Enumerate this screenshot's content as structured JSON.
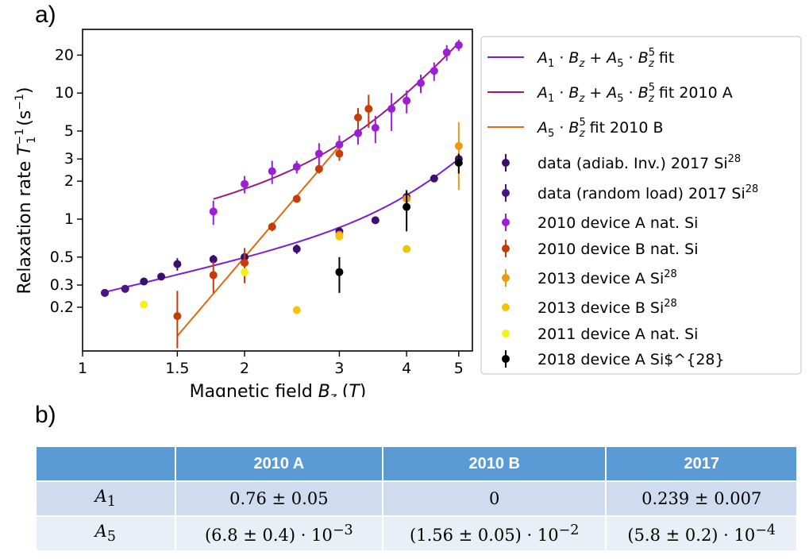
{
  "panel_labels": {
    "a": "a)",
    "b": "b)"
  },
  "chart_data": {
    "type": "scatter",
    "xlabel": "Magnetic field B_z (T)",
    "ylabel": "Relaxation rate T_1^{-1} (s^{-1})",
    "xscale": "log",
    "yscale": "log",
    "xlim": [
      1,
      5.3
    ],
    "ylim": [
      0.09,
      32
    ],
    "x_ticks": [
      1,
      1.5,
      2,
      3,
      4,
      5
    ],
    "x_tick_labels": [
      "1",
      "1.5",
      "2",
      "3",
      "4",
      "5"
    ],
    "y_ticks": [
      0.2,
      0.3,
      0.5,
      1,
      2,
      3,
      5,
      10,
      20
    ],
    "y_tick_labels": [
      "0.2",
      "0.3",
      "0.5",
      "1",
      "2",
      "3",
      "5",
      "10",
      "20"
    ],
    "grid": false,
    "legend_position": "right",
    "fits": [
      {
        "name": "A_1·B_z + A_5·B_z^5 fit",
        "color": "#7b1fd6",
        "A1": 0.239,
        "A5": 0.00058,
        "x_range": [
          1.1,
          5.0
        ]
      },
      {
        "name": "A_1·B_z + A_5·B_z^5 fit 2010 A",
        "color": "#a0197a",
        "A1": 0.76,
        "A5": 0.0068,
        "x_range": [
          1.75,
          5.0
        ]
      },
      {
        "name": "A_5·B_z^5 fit 2010 B",
        "color": "#e06a0e",
        "A1": 0,
        "A5": 0.0156,
        "x_range": [
          1.5,
          3.0
        ]
      }
    ],
    "series": [
      {
        "name": "data (adiab. Inv.) 2017 Si^28",
        "color": "#3b0f70",
        "points": [
          [
            1.1,
            0.26
          ],
          [
            1.2,
            0.28
          ],
          [
            1.3,
            0.32
          ],
          [
            1.4,
            0.35
          ],
          [
            1.5,
            0.44
          ],
          [
            1.75,
            0.48
          ],
          [
            2.0,
            0.5
          ],
          [
            2.5,
            0.58
          ],
          [
            3.0,
            0.8
          ],
          [
            3.5,
            0.98
          ],
          [
            4.0,
            1.5
          ],
          [
            4.5,
            2.1
          ],
          [
            5.0,
            3.0
          ]
        ],
        "errors": [
          0.01,
          0.01,
          0.01,
          0.02,
          0.05,
          0.04,
          0.04,
          0.05,
          0.06,
          0.05,
          0.15,
          0.1,
          0.3
        ]
      },
      {
        "name": "data (random load) 2017 Si^28",
        "color": "#4a1486",
        "points": [
          [
            1.1,
            0.26
          ],
          [
            1.2,
            0.28
          ]
        ],
        "errors": [
          0.01,
          0.01
        ]
      },
      {
        "name": "2010 device A nat. Si",
        "color": "#9b1fd6",
        "points": [
          [
            1.75,
            1.15
          ],
          [
            2.0,
            1.9
          ],
          [
            2.25,
            2.4
          ],
          [
            2.5,
            2.6
          ],
          [
            2.75,
            3.3
          ],
          [
            3.0,
            3.9
          ],
          [
            3.25,
            4.8
          ],
          [
            3.5,
            5.3
          ],
          [
            3.75,
            7.5
          ],
          [
            4.0,
            8.7
          ],
          [
            4.25,
            12
          ],
          [
            4.5,
            15
          ],
          [
            4.75,
            21
          ],
          [
            5.0,
            24
          ]
        ],
        "errors": [
          0.25,
          0.3,
          0.5,
          0.3,
          0.7,
          0.7,
          0.9,
          1.3,
          2.5,
          1.8,
          2,
          2.5,
          3,
          2.5
        ]
      },
      {
        "name": "2010 device B nat. Si",
        "color": "#c43c08",
        "points": [
          [
            1.5,
            0.17
          ],
          [
            1.75,
            0.36
          ],
          [
            2.0,
            0.45
          ],
          [
            2.25,
            0.87
          ],
          [
            2.5,
            1.45
          ],
          [
            2.75,
            2.5
          ],
          [
            3.0,
            3.3
          ],
          [
            3.25,
            6.4
          ],
          [
            3.4,
            7.5
          ]
        ],
        "errors": [
          0.1,
          0.1,
          0.14,
          0.07,
          0.1,
          0.2,
          0.4,
          1.2,
          2.2
        ]
      },
      {
        "name": "2013 device A Si^28",
        "color": "#ea9a10",
        "points": [
          [
            3.0,
            0.75
          ],
          [
            4.0,
            1.45
          ],
          [
            5.0,
            3.8
          ]
        ],
        "errors": [
          0.05,
          0.15,
          2.1
        ]
      },
      {
        "name": "2013 device B Si^28",
        "color": "#f5c400",
        "points": [
          [
            2.5,
            0.19
          ],
          [
            3.0,
            0.73
          ],
          [
            4.0,
            0.58
          ]
        ],
        "errors": [
          0,
          0,
          0
        ]
      },
      {
        "name": "2011 device A nat. Si",
        "color": "#f5f018",
        "points": [
          [
            1.3,
            0.21
          ],
          [
            2.0,
            0.38
          ]
        ],
        "errors": [
          0,
          0
        ]
      },
      {
        "name": "2018 device A Si$^{28}",
        "color": "#000000",
        "points": [
          [
            3.0,
            0.38
          ],
          [
            4.0,
            1.25
          ],
          [
            5.0,
            2.8
          ]
        ],
        "errors": [
          0.12,
          0.45,
          0.5
        ]
      }
    ]
  },
  "table": {
    "headers": [
      "",
      "2010 A",
      "2010 B",
      "2017"
    ],
    "rows": [
      {
        "label": "A1",
        "cells": [
          "0.76 ± 0.05",
          "0",
          "0.239 ± 0.007"
        ]
      },
      {
        "label": "A5",
        "cells": [
          "(6.8 ± 0.4) · 10^−3",
          "(1.56 ± 0.05) · 10^−2",
          "(5.8 ± 0.2) · 10^−4"
        ]
      }
    ]
  }
}
